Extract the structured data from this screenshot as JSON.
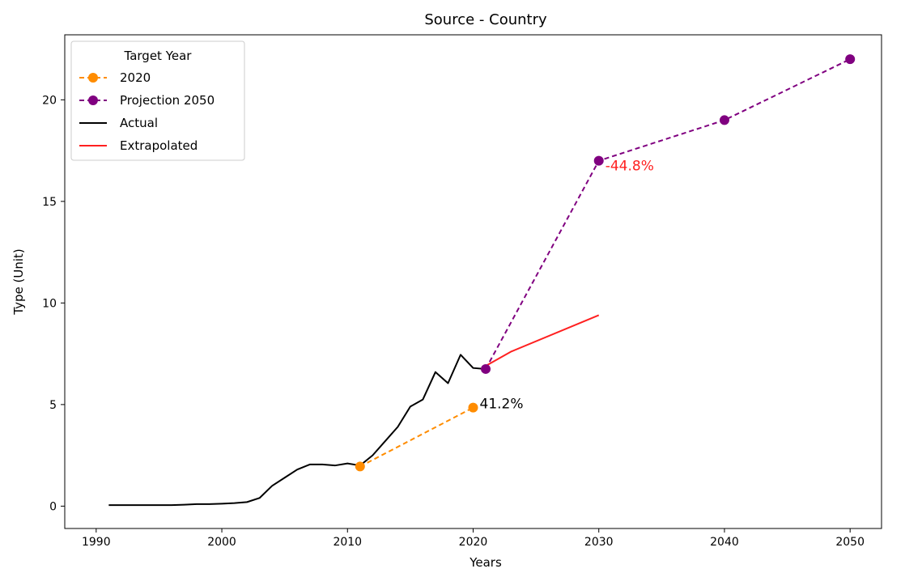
{
  "chart_data": {
    "type": "line",
    "title": "Source - Country",
    "xlabel": "Years",
    "ylabel": "Type (Unit)",
    "xlim": [
      1987.5,
      2052.5
    ],
    "ylim": [
      -1.1,
      23.2
    ],
    "xticks": [
      1990,
      2000,
      2010,
      2020,
      2030,
      2040,
      2050
    ],
    "yticks": [
      0,
      5,
      10,
      15,
      20
    ],
    "grid": false,
    "legend": {
      "title": "Target Year",
      "placement": "upper-left",
      "entries": [
        "2020",
        "Projection 2050",
        "Actual",
        "Extrapolated"
      ]
    },
    "series": [
      {
        "name": "2020",
        "style": "dashed-markers",
        "color": "#ff8c00",
        "x": [
          2011,
          2020
        ],
        "y": [
          1.95,
          4.85
        ]
      },
      {
        "name": "Projection 2050",
        "style": "dashed-markers",
        "color": "#800080",
        "x": [
          2021,
          2030,
          2040,
          2050
        ],
        "y": [
          6.75,
          17.0,
          19.0,
          22.0
        ]
      },
      {
        "name": "Actual",
        "style": "solid",
        "color": "#000000",
        "x": [
          1991,
          1992,
          1993,
          1994,
          1995,
          1996,
          1997,
          1998,
          1999,
          2000,
          2001,
          2002,
          2003,
          2004,
          2005,
          2006,
          2007,
          2008,
          2009,
          2010,
          2011,
          2012,
          2013,
          2014,
          2015,
          2016,
          2017,
          2018,
          2019,
          2020,
          2021
        ],
        "y": [
          0.05,
          0.05,
          0.05,
          0.05,
          0.05,
          0.05,
          0.07,
          0.1,
          0.1,
          0.12,
          0.15,
          0.2,
          0.4,
          1.0,
          1.4,
          1.8,
          2.05,
          2.05,
          2.0,
          2.1,
          2.0,
          2.5,
          3.2,
          3.9,
          4.9,
          5.25,
          6.6,
          6.05,
          7.45,
          6.8,
          6.75
        ]
      },
      {
        "name": "Extrapolated",
        "style": "solid",
        "color": "#ff2020",
        "x": [
          2021,
          2023,
          2030
        ],
        "y": [
          6.9,
          7.6,
          9.4
        ]
      }
    ],
    "annotations": [
      {
        "text": "41.2%",
        "x": 2020,
        "y": 4.85,
        "color": "#000000"
      },
      {
        "text": "-44.8%",
        "x": 2030,
        "y": 17.0,
        "color": "#ff2020"
      }
    ]
  }
}
